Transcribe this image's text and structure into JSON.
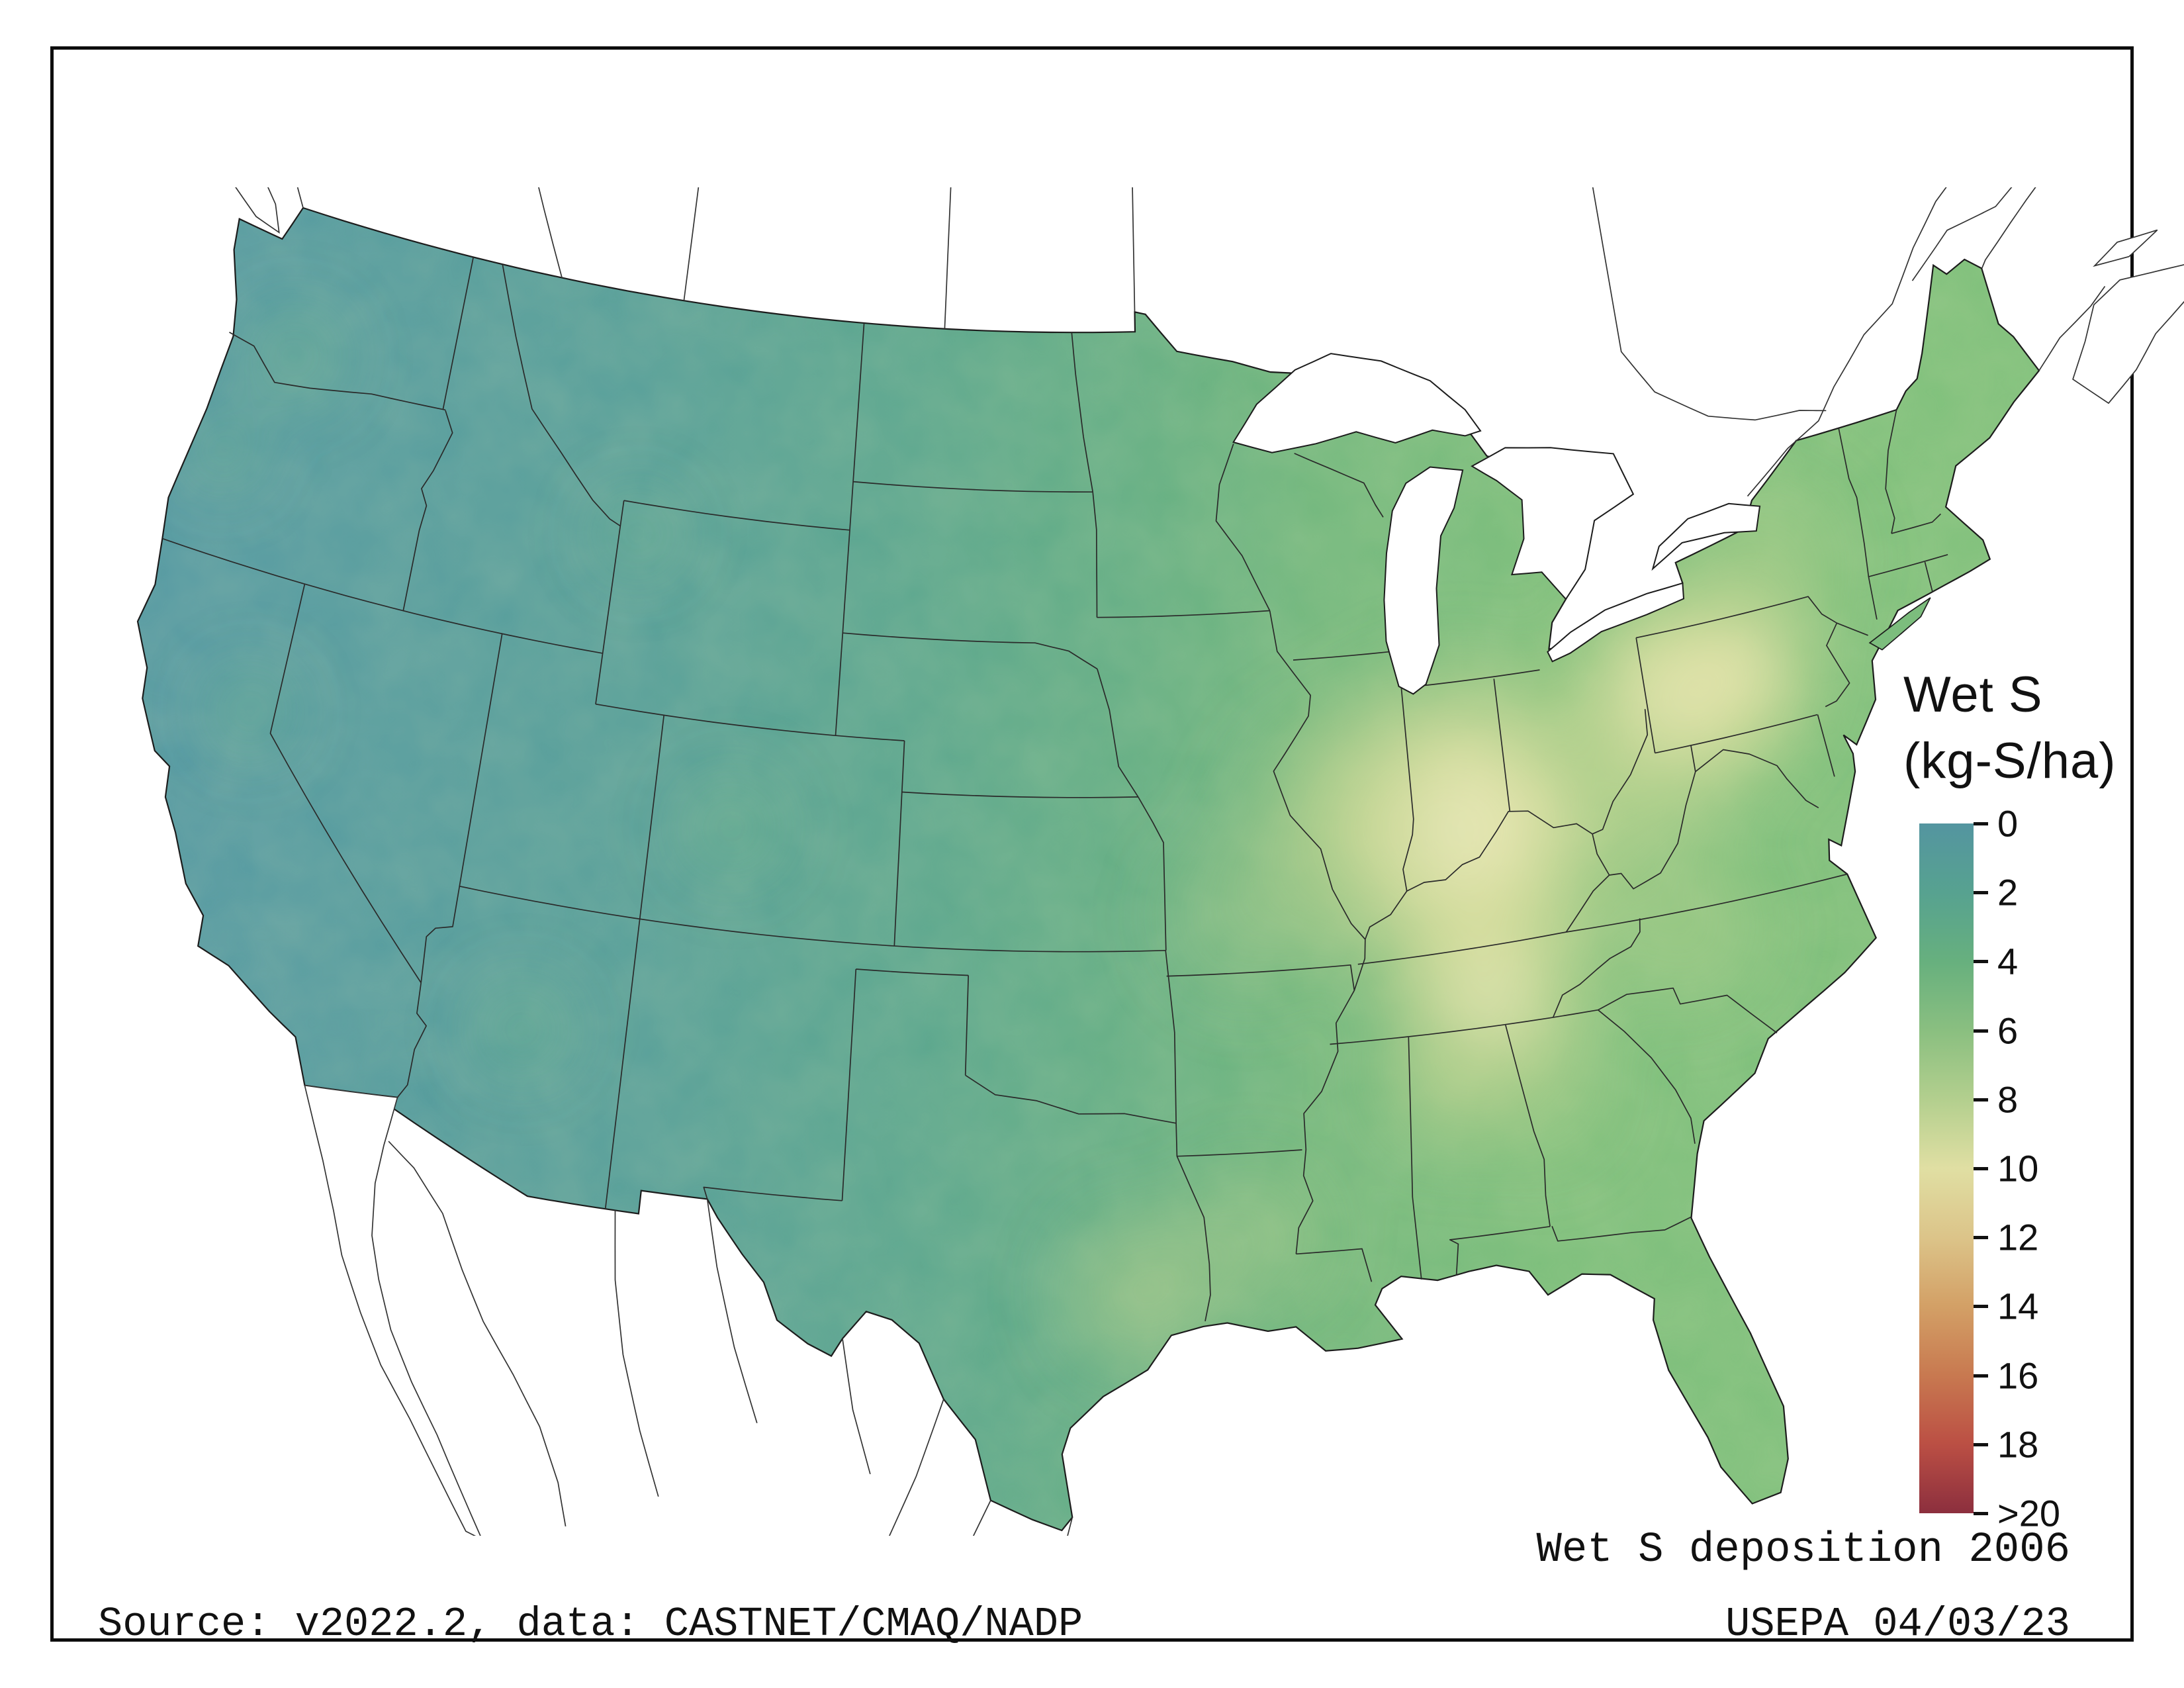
{
  "page": {
    "background": "#ffffff",
    "frame_color": "#0d0d0d"
  },
  "legend": {
    "title_line1": "Wet S",
    "title_line2": "(kg-S/ha)",
    "ticks": [
      "0",
      "2",
      "4",
      "6",
      "8",
      "10",
      "12",
      "14",
      "16",
      "18",
      ">20"
    ],
    "colors": [
      "#5495a0",
      "#57a290",
      "#67b07e",
      "#8abf80",
      "#b3cf8e",
      "#e0dfa3",
      "#dcc489",
      "#d3a066",
      "#c87950",
      "#bb4f44",
      "#8c2f3e"
    ]
  },
  "caption": "Wet S deposition 2006",
  "footer": {
    "source": "Source: v2022.2, data: CASTNET/CMAQ/NADP",
    "agency": "USEPA 04/03/23"
  },
  "chart_data": {
    "type": "heatmap",
    "title": "Wet S deposition 2006",
    "variable": "Wet sulfur deposition",
    "units": "kg-S/ha",
    "year": "2006",
    "region": "Conterminous United States (state boundaries shown; Canada and Mexico outlined, unfilled)",
    "legend_title": "Wet S (kg-S/ha)",
    "scale_ticks": [
      "0",
      "2",
      "4",
      "6",
      "8",
      "10",
      "12",
      "14",
      "16",
      "18",
      ">20"
    ],
    "scale_colors": [
      "#5495a0",
      "#57a290",
      "#67b07e",
      "#8abf80",
      "#b3cf8e",
      "#e0dfa3",
      "#dcc489",
      "#d3a066",
      "#c87950",
      "#bb4f44",
      "#8c2f3e"
    ],
    "colorbar_range": "0 to >20 kg-S/ha, low = blue-teal, high = dark red",
    "regional_values_kg_S_ha": {
      "pacific_northwest": "1-2",
      "california": "1-2",
      "great_basin_and_southwest": "1-3",
      "northern_plains": "2-3",
      "southern_plains_texas": "2-4",
      "upper_midwest": "3-5",
      "midwest_corn_belt": "4-7",
      "ohio_valley_indiana_kentucky": "8-10",
      "western_pennsylvania": "8-10",
      "tennessee_valley": "6-9",
      "northeast": "4-7",
      "southeast": "4-6",
      "gulf_coast_east_texas_louisiana": "4-6",
      "florida": "3-5"
    },
    "source_note": "Source: v2022.2, data: CASTNET/CMAQ/NADP",
    "agency_note": "USEPA 04/03/23"
  }
}
